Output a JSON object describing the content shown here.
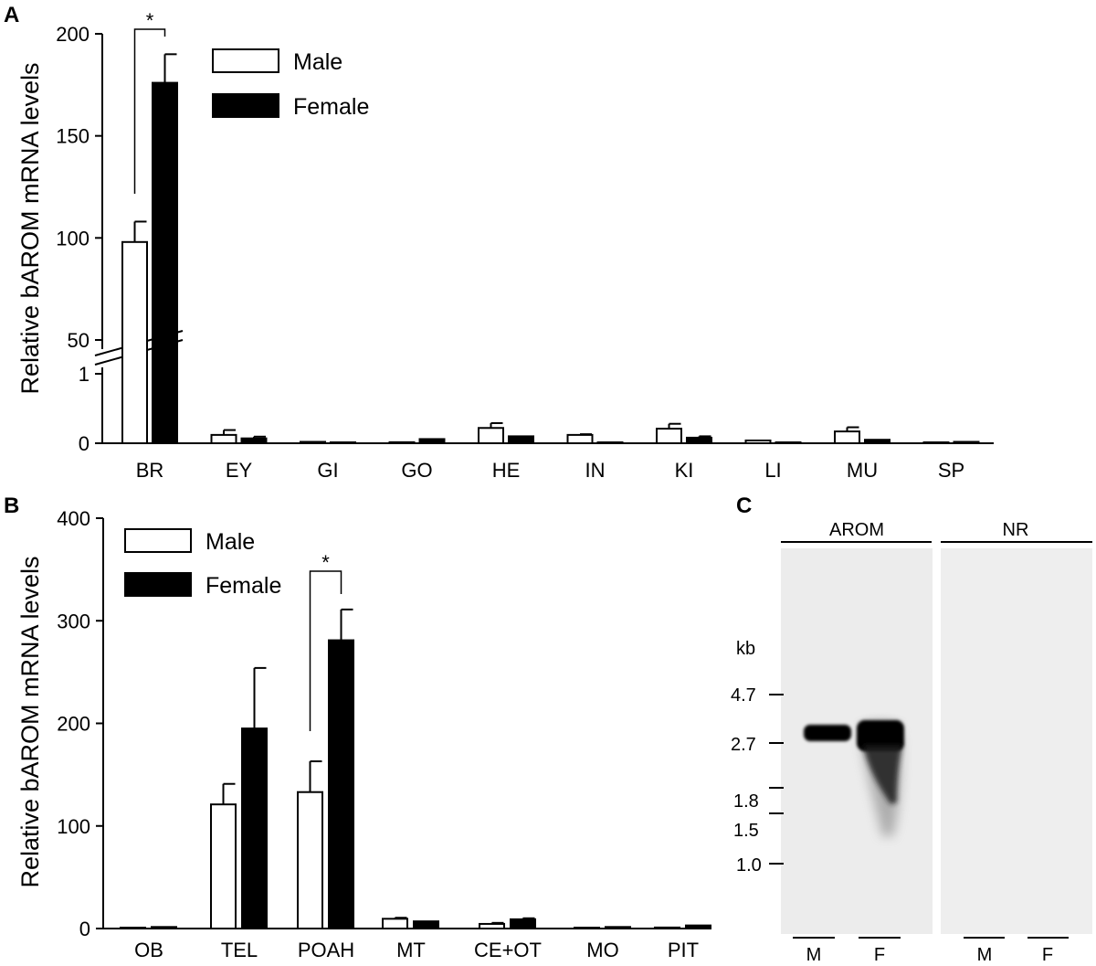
{
  "panels": {
    "a": "A",
    "b": "B",
    "c": "C"
  },
  "chart_data": [
    {
      "type": "bar",
      "panel": "A",
      "ylabel": "Relative bAROM mRNA levels",
      "xlabel": "",
      "broken_axis": true,
      "lower_range": [
        0,
        2
      ],
      "upper_range": [
        50,
        200
      ],
      "lower_ticks": [
        0,
        1
      ],
      "upper_ticks": [
        50,
        100,
        150,
        200
      ],
      "categories": [
        "BR",
        "EY",
        "GI",
        "GO",
        "HE",
        "IN",
        "KI",
        "LI",
        "MU",
        "SP"
      ],
      "series": [
        {
          "name": "Male",
          "values": [
            98,
            0.12,
            0.02,
            0.015,
            0.22,
            0.12,
            0.21,
            0.04,
            0.17,
            0.003
          ],
          "errors": [
            10,
            0.07,
            0,
            0,
            0.07,
            0.01,
            0.07,
            0,
            0.06,
            0
          ]
        },
        {
          "name": "Female",
          "values": [
            176,
            0.07,
            0.01,
            0.06,
            0.1,
            0.01,
            0.08,
            0.01,
            0.05,
            0.02
          ],
          "errors": [
            14,
            0.025,
            0,
            0,
            0,
            0,
            0.02,
            0,
            0,
            0
          ]
        }
      ],
      "significance": [
        {
          "category": "BR",
          "label": "*"
        }
      ],
      "legend_position": "top-left",
      "colors": {
        "Male": "#ffffff",
        "Female": "#000000"
      }
    },
    {
      "type": "bar",
      "panel": "B",
      "ylabel": "Relative bAROM mRNA levels",
      "xlabel": "",
      "ylim": [
        0,
        400
      ],
      "yticks": [
        0,
        100,
        200,
        300,
        400
      ],
      "categories": [
        "OB",
        "TEL",
        "POAH",
        "MT",
        "CE+OT",
        "MO",
        "PIT"
      ],
      "series": [
        {
          "name": "Male",
          "values": [
            0.5,
            121,
            133,
            9.5,
            4.5,
            0.5,
            1
          ],
          "errors": [
            0,
            20,
            30,
            1,
            1,
            0,
            0
          ]
        },
        {
          "name": "Female",
          "values": [
            1.5,
            195,
            281,
            7,
            9,
            1.5,
            3
          ],
          "errors": [
            0,
            59,
            30,
            0,
            1,
            0,
            0
          ]
        }
      ],
      "significance": [
        {
          "category": "POAH",
          "label": "*"
        }
      ],
      "legend_position": "top-left",
      "colors": {
        "Male": "#ffffff",
        "Female": "#000000"
      }
    }
  ],
  "blot": {
    "header_left": "AROM",
    "header_right": "NR",
    "unit": "kb",
    "markers": [
      "4.7",
      "2.7",
      "1.8",
      "1.5",
      "1.0"
    ],
    "lanes_left": [
      "M",
      "F"
    ],
    "lanes_right": [
      "M",
      "F"
    ]
  }
}
